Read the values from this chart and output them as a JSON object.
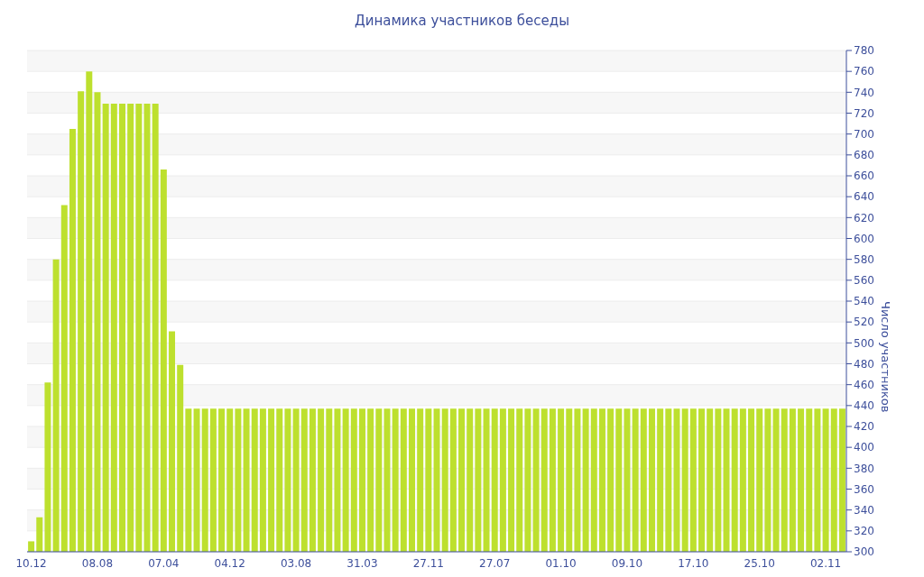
{
  "chart_data": {
    "type": "bar",
    "title": "Динамика участников беседы",
    "ylabel": "Число участников",
    "categories": [
      "10.12",
      null,
      null,
      null,
      null,
      null,
      null,
      null,
      "08.08",
      null,
      null,
      null,
      null,
      null,
      null,
      null,
      "07.04",
      null,
      null,
      null,
      null,
      null,
      null,
      null,
      "04.12",
      null,
      null,
      null,
      null,
      null,
      null,
      null,
      "03.08",
      null,
      null,
      null,
      null,
      null,
      null,
      null,
      "31.03",
      null,
      null,
      null,
      null,
      null,
      null,
      null,
      "27.11",
      null,
      null,
      null,
      null,
      null,
      null,
      null,
      "27.07",
      null,
      null,
      null,
      null,
      null,
      null,
      null,
      "01.10",
      null,
      null,
      null,
      null,
      null,
      null,
      null,
      "09.10",
      null,
      null,
      null,
      null,
      null,
      null,
      null,
      "17.10",
      null,
      null,
      null,
      null,
      null,
      null,
      null,
      "25.10",
      null,
      null,
      null,
      null,
      null,
      null,
      null,
      "02.11",
      null,
      null
    ],
    "values": [
      310,
      333,
      462,
      580,
      632,
      705,
      741,
      760,
      740,
      729,
      729,
      729,
      729,
      729,
      729,
      729,
      666,
      511,
      479,
      437,
      437,
      437,
      437,
      437,
      437,
      437,
      437,
      437,
      437,
      437,
      437,
      437,
      437,
      437,
      437,
      437,
      437,
      437,
      437,
      437,
      437,
      437,
      437,
      437,
      437,
      437,
      437,
      437,
      437,
      437,
      437,
      437,
      437,
      437,
      437,
      437,
      437,
      437,
      437,
      437,
      437,
      437,
      437,
      437,
      437,
      437,
      437,
      437,
      437,
      437,
      437,
      437,
      437,
      437,
      437,
      437,
      437,
      437,
      437,
      437,
      437,
      437,
      437,
      437,
      437,
      437,
      437,
      437,
      437,
      437,
      437,
      437,
      437,
      437,
      437,
      437,
      437,
      437,
      437
    ],
    "color": "#bde02e",
    "ylim": [
      300,
      780
    ],
    "yticks": [
      300,
      320,
      340,
      360,
      380,
      400,
      420,
      440,
      460,
      480,
      500,
      520,
      540,
      560,
      580,
      600,
      620,
      640,
      660,
      680,
      700,
      720,
      740,
      760,
      780
    ],
    "grid": "y"
  }
}
